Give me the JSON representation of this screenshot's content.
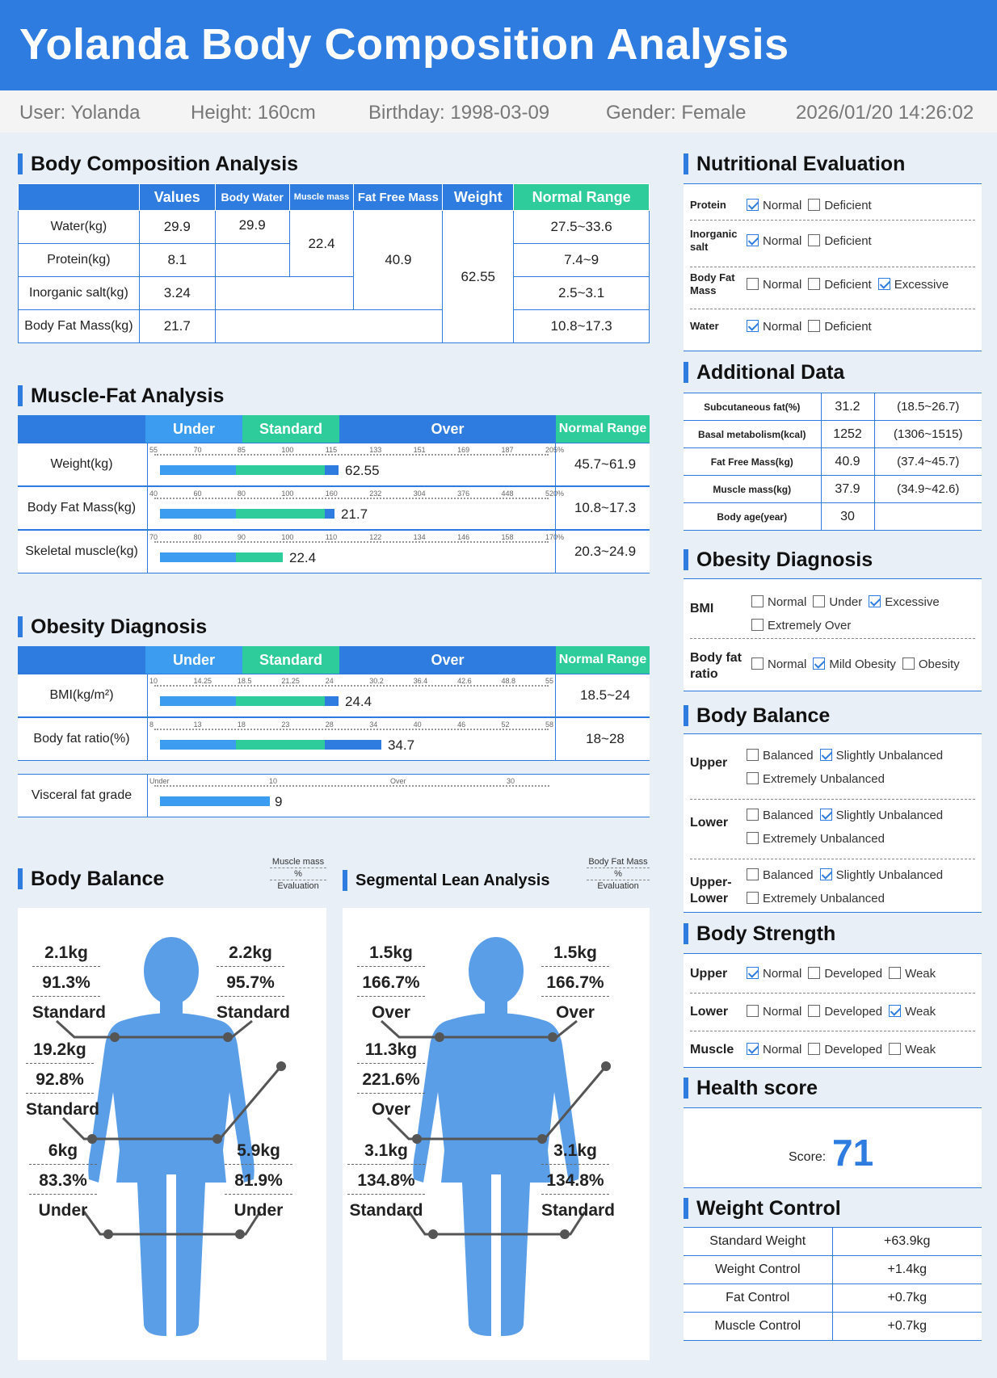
{
  "title": "Yolanda Body Composition Analysis",
  "info": {
    "user": "User: Yolanda",
    "height": "Height: 160cm",
    "birthday": "Birthday: 1998-03-09",
    "gender": "Gender: Female",
    "datetime": "2026/01/20 14:26:02"
  },
  "colors": {
    "header": "#2f7ce0",
    "under_bar": "#3b9cf0",
    "standard_bar": "#2ecc9a",
    "over_bar": "#2f7ce0",
    "body_figure": "#5b9ee8"
  },
  "composition": {
    "title": "Body Composition Analysis",
    "headers": [
      "",
      "Values",
      "Body Water",
      "Muscle mass",
      "Fat Free Mass",
      "Weight",
      "Normal Range"
    ],
    "rows": [
      {
        "label": "Water(kg)",
        "value": "29.9",
        "range": "27.5~33.6"
      },
      {
        "label": "Protein(kg)",
        "value": "8.1",
        "range": "7.4~9"
      },
      {
        "label": "Inorganic salt(kg)",
        "value": "3.24",
        "range": "2.5~3.1"
      },
      {
        "label": "Body Fat Mass(kg)",
        "value": "21.7",
        "range": "10.8~17.3"
      }
    ],
    "body_water": "29.9",
    "muscle_mass": "22.4",
    "fat_free_mass": "40.9",
    "weight": "62.55"
  },
  "muscle_fat": {
    "title": "Muscle-Fat Analysis",
    "headers": [
      "Under",
      "Standard",
      "Over",
      "Normal Range"
    ],
    "rows": [
      {
        "label": "Weight(kg)",
        "ticks": [
          "55",
          "70",
          "85",
          "100",
          "115",
          "133",
          "151",
          "169",
          "187",
          "205%"
        ],
        "value": "62.55",
        "value_num": 62.55,
        "fill": 0.45,
        "range": "45.7~61.9"
      },
      {
        "label": "Body Fat Mass(kg)",
        "ticks": [
          "40",
          "60",
          "80",
          "100",
          "160",
          "232",
          "304",
          "376",
          "448",
          "520%"
        ],
        "value": "21.7",
        "value_num": 21.7,
        "fill": 0.44,
        "range": "10.8~17.3"
      },
      {
        "label": "Skeletal muscle(kg)",
        "ticks": [
          "70",
          "80",
          "90",
          "100",
          "110",
          "122",
          "134",
          "146",
          "158",
          "170%"
        ],
        "value": "22.4",
        "value_num": 22.4,
        "fill": 0.31,
        "range": "20.3~24.9"
      }
    ]
  },
  "obesity": {
    "title": "Obesity Diagnosis",
    "headers": [
      "Under",
      "Standard",
      "Over",
      "Normal Range"
    ],
    "rows": [
      {
        "label": "BMI(kg/m²)",
        "ticks": [
          "10",
          "14.25",
          "18.5",
          "21.25",
          "24",
          "30.2",
          "36.4",
          "42.6",
          "48.8",
          "55"
        ],
        "value": "24.4",
        "value_num": 24.4,
        "fill": 0.45,
        "range": "18.5~24"
      },
      {
        "label": "Body fat ratio(%)",
        "ticks": [
          "8",
          "13",
          "18",
          "23",
          "28",
          "34",
          "40",
          "46",
          "52",
          "58"
        ],
        "value": "34.7",
        "value_num": 34.7,
        "fill": 0.56,
        "range": "18~28"
      }
    ],
    "visceral": {
      "label": "Visceral fat grade",
      "ticks": [
        "Under",
        "10",
        "Over",
        "30"
      ],
      "value": "9",
      "value_num": 9
    }
  },
  "balance": {
    "title": "Body Balance",
    "legend": [
      "Muscle mass",
      "%",
      "Evaluation"
    ],
    "la": [
      "2.1kg",
      "91.3%",
      "Standard"
    ],
    "ra": [
      "2.2kg",
      "95.7%",
      "Standard"
    ],
    "trunk": [
      "19.2kg",
      "92.8%",
      "Standard"
    ],
    "ll": [
      "6kg",
      "83.3%",
      "Under"
    ],
    "rl": [
      "5.9kg",
      "81.9%",
      "Under"
    ]
  },
  "segmental": {
    "title": "Segmental Lean Analysis",
    "legend": [
      "Body Fat Mass",
      "%",
      "Evaluation"
    ],
    "la": [
      "1.5kg",
      "166.7%",
      "Over"
    ],
    "ra": [
      "1.5kg",
      "166.7%",
      "Over"
    ],
    "trunk": [
      "11.3kg",
      "221.6%",
      "Over"
    ],
    "ll": [
      "3.1kg",
      "134.8%",
      "Standard"
    ],
    "rl": [
      "3.1kg",
      "134.8%",
      "Standard"
    ]
  },
  "nutrition": {
    "title": "Nutritional Evaluation",
    "rows": [
      {
        "label": "Protein",
        "opts": [
          "Normal",
          "Deficient"
        ],
        "checked": [
          true,
          false
        ]
      },
      {
        "label": "Inorganic salt",
        "opts": [
          "Normal",
          "Deficient"
        ],
        "checked": [
          true,
          false
        ]
      },
      {
        "label": "Body Fat Mass",
        "opts": [
          "Normal",
          "Deficient",
          "Excessive"
        ],
        "checked": [
          false,
          false,
          true
        ]
      },
      {
        "label": "Water",
        "opts": [
          "Normal",
          "Deficient"
        ],
        "checked": [
          true,
          false
        ]
      }
    ]
  },
  "additional": {
    "title": "Additional Data",
    "rows": [
      {
        "label": "Subcutaneous fat(%)",
        "value": "31.2",
        "range": "(18.5~26.7)"
      },
      {
        "label": "Basal metabolism(kcal)",
        "value": "1252",
        "range": "(1306~1515)"
      },
      {
        "label": "Fat Free Mass(kg)",
        "value": "40.9",
        "range": "(37.4~45.7)"
      },
      {
        "label": "Muscle mass(kg)",
        "value": "37.9",
        "range": "(34.9~42.6)"
      },
      {
        "label": "Body age(year)",
        "value": "30",
        "range": ""
      }
    ]
  },
  "obesity_right": {
    "title": "Obesity Diagnosis",
    "bmi": {
      "label": "BMI",
      "opts": [
        "Normal",
        "Under",
        "Excessive",
        "Extremely Over"
      ],
      "checked": [
        false,
        false,
        true,
        false
      ]
    },
    "fat": {
      "label": "Body fat ratio",
      "opts": [
        "Normal",
        "Mild Obesity",
        "Obesity"
      ],
      "checked": [
        false,
        true,
        false
      ]
    }
  },
  "balance_right": {
    "title": "Body Balance",
    "rows": [
      {
        "label": "Upper",
        "opts": [
          "Balanced",
          "Slightly Unbalanced",
          "Extremely Unbalanced"
        ],
        "checked": [
          false,
          true,
          false
        ]
      },
      {
        "label": "Lower",
        "opts": [
          "Balanced",
          "Slightly Unbalanced",
          "Extremely Unbalanced"
        ],
        "checked": [
          false,
          true,
          false
        ]
      },
      {
        "label": "Upper-Lower",
        "opts": [
          "Balanced",
          "Slightly Unbalanced",
          "Extremely Unbalanced"
        ],
        "checked": [
          false,
          true,
          false
        ]
      }
    ]
  },
  "strength": {
    "title": "Body Strength",
    "rows": [
      {
        "label": "Upper",
        "opts": [
          "Normal",
          "Developed",
          "Weak"
        ],
        "checked": [
          true,
          false,
          false
        ]
      },
      {
        "label": "Lower",
        "opts": [
          "Normal",
          "Developed",
          "Weak"
        ],
        "checked": [
          false,
          false,
          true
        ]
      },
      {
        "label": "Muscle",
        "opts": [
          "Normal",
          "Developed",
          "Weak"
        ],
        "checked": [
          true,
          false,
          false
        ]
      }
    ]
  },
  "health": {
    "title": "Health score",
    "score_label": "Score:",
    "score": "71"
  },
  "weight_control": {
    "title": "Weight Control",
    "rows": [
      {
        "label": "Standard Weight",
        "value": "+63.9kg"
      },
      {
        "label": "Weight Control",
        "value": "+1.4kg"
      },
      {
        "label": "Fat Control",
        "value": "+0.7kg"
      },
      {
        "label": "Muscle Control",
        "value": "+0.7kg"
      }
    ]
  }
}
